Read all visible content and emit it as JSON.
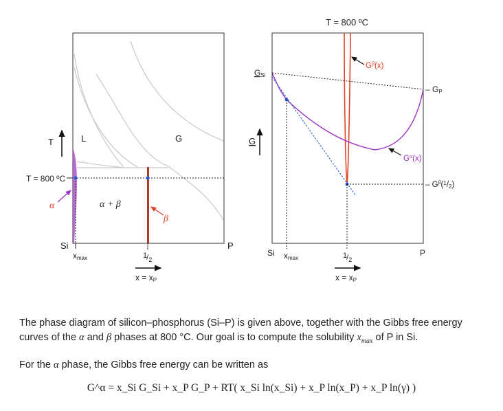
{
  "left_plot": {
    "temp_axis_label": "T",
    "temp_line_label": "T = 800 ºC",
    "region_L": "L",
    "region_G": "G",
    "region_two_phase": "α + β",
    "alpha_label": "α",
    "beta_label": "β",
    "x_left": "Si",
    "x_right": "P",
    "xmax_label": "x",
    "xmax_sub": "max",
    "half_num": "1",
    "half_den": "2",
    "axis_var": "x = x",
    "axis_var_sub": "P"
  },
  "right_plot": {
    "title": "T = 800 ºC",
    "g_axis_label": "G",
    "gsi_main": "G",
    "gsi_sub": "Si",
    "gp_label": "– G",
    "gp_sub": "P",
    "gbeta_label": "G",
    "gbeta_sup": "β",
    "gbeta_arg": "(x)",
    "galpha_label": "G",
    "galpha_sup": "α",
    "galpha_arg": "(x)",
    "gbeta_half_label": "– G",
    "gbeta_half_sup": "β",
    "gbeta_half_arg": "(",
    "gbeta_half_num": "1",
    "gbeta_half_den": "2",
    "gbeta_half_close": ")",
    "x_left": "Si",
    "xmax_label": "x",
    "xmax_sub": "max",
    "x_right": "P",
    "half_num": "1",
    "half_den": "2",
    "axis_var": "x = x",
    "axis_var_sub": "P"
  },
  "text": {
    "p1_a": "The phase diagram of silicon–phosphorus (Si–P) is given above, together with the Gibbs free energy curves of the ",
    "p1_alpha": "α",
    "p1_b": " and ",
    "p1_beta": "β",
    "p1_c": " phases at 800 °C.  Our goal is to compute the solubility ",
    "p1_x": "x",
    "p1_xsub": "max",
    "p1_d": " of P in Si.",
    "p2_a": "For the ",
    "p2_alpha": "α",
    "p2_b": " phase, the Gibbs free energy can be written as",
    "equation": "G^α = x_Si G_Si + x_P G_P + RT( x_Si ln(x_Si) + x_P ln(x_P) + x_P ln(γ) )"
  },
  "colors": {
    "alpha_purple": "#9b30c0",
    "beta_red": "#e2412a",
    "tangent_blue": "#2a5ad6",
    "phase_line_grey": "#c9c9c9"
  }
}
